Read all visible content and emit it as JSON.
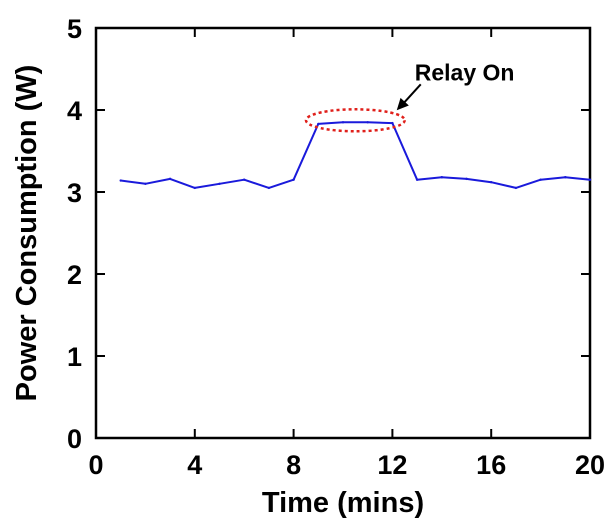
{
  "chart_data": {
    "type": "line",
    "title": "",
    "xlabel": "Time (mins)",
    "ylabel": "Power Consumption (W)",
    "xlim": [
      0,
      20
    ],
    "ylim": [
      0,
      5
    ],
    "xticks": [
      0,
      4,
      8,
      12,
      16,
      20
    ],
    "yticks": [
      0,
      1,
      2,
      3,
      4,
      5
    ],
    "grid": false,
    "series": [
      {
        "color": "#1a1adb",
        "x": [
          1,
          2,
          3,
          4,
          5,
          6,
          7,
          8,
          9,
          10,
          11,
          12,
          13,
          14,
          15,
          16,
          17,
          18,
          19,
          20
        ],
        "y": [
          3.14,
          3.1,
          3.16,
          3.05,
          3.1,
          3.15,
          3.05,
          3.15,
          3.83,
          3.85,
          3.85,
          3.84,
          3.15,
          3.18,
          3.16,
          3.12,
          3.05,
          3.15,
          3.18,
          3.15
        ]
      }
    ],
    "annotations": [
      {
        "text": "Relay On",
        "target_x_range": [
          8.5,
          12.5
        ],
        "target_y": 3.85,
        "ellipse_color": "#e0201b"
      }
    ]
  }
}
